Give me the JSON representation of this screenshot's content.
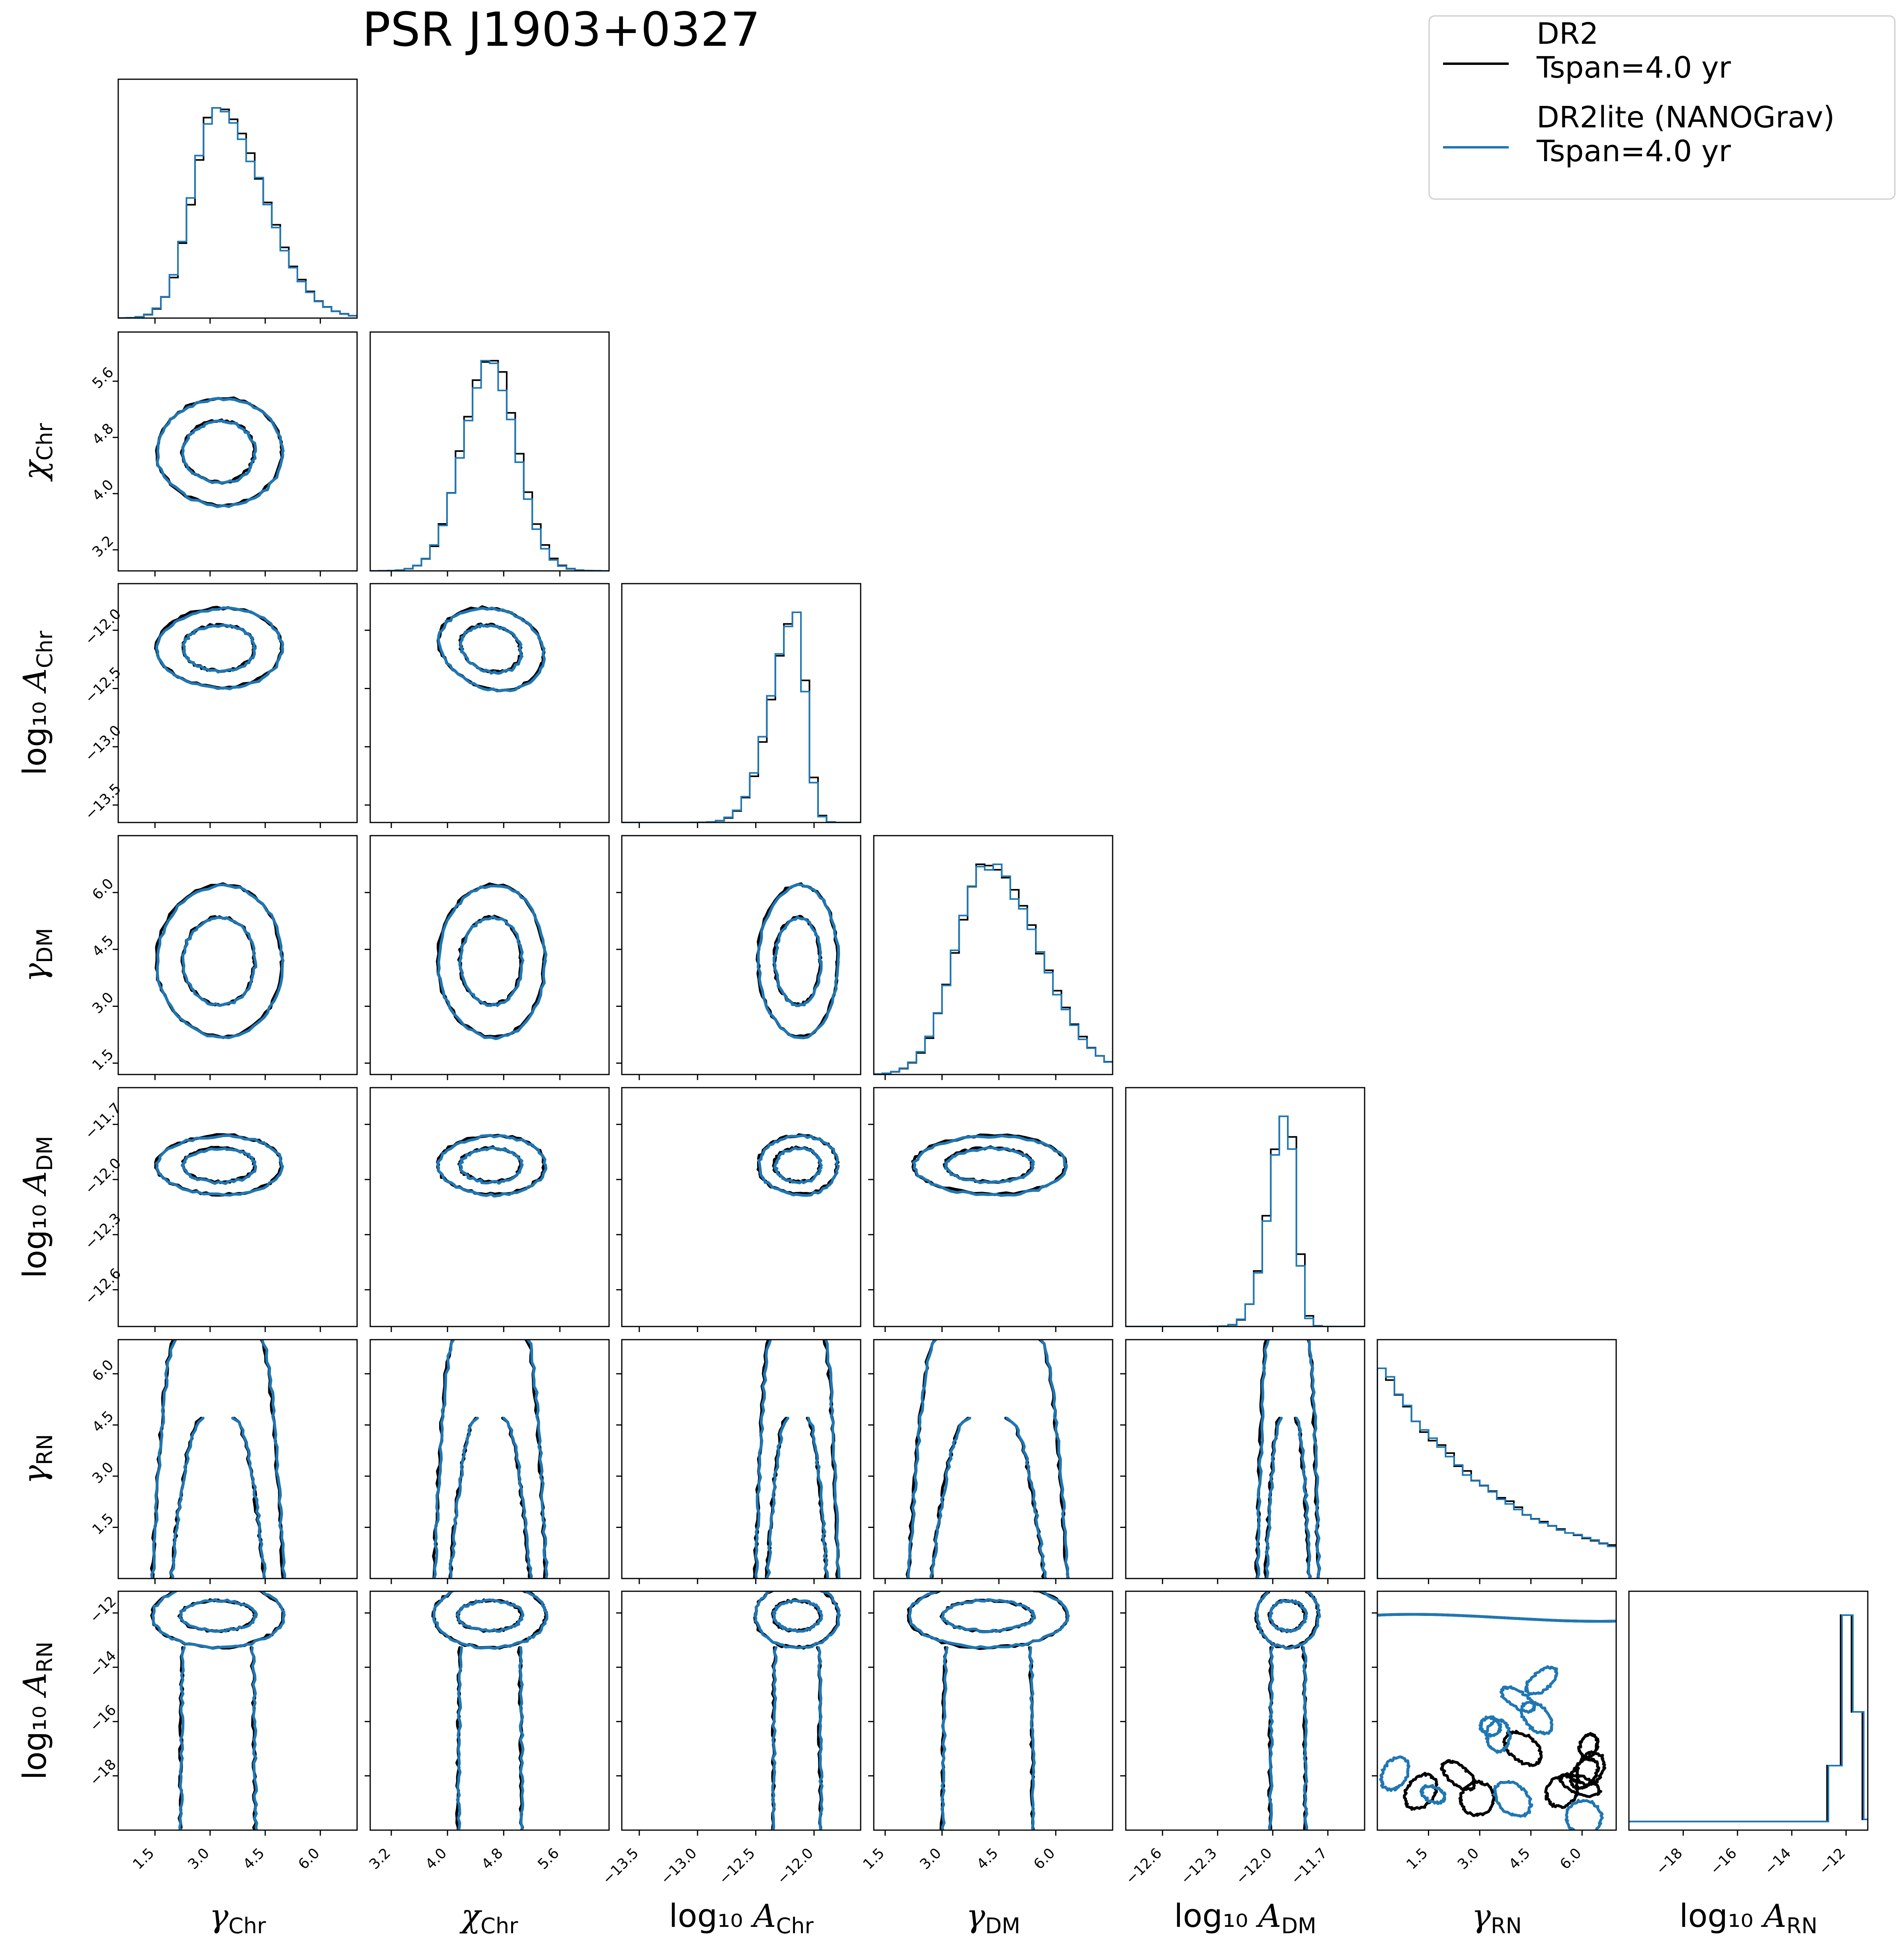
{
  "chart_data": {
    "type": "corner",
    "title": "PSR J1903+0327",
    "colors": {
      "DR2": "#000000",
      "DR2lite": "#1f77b4"
    },
    "legend": {
      "placement": "top-right",
      "entries": [
        {
          "key": "DR2",
          "line1": "DR2",
          "line2": "Tspan=4.0 yr"
        },
        {
          "key": "DR2lite",
          "line1": "DR2lite (NANOGrav)",
          "line2": "Tspan=4.0 yr"
        }
      ]
    },
    "params": [
      {
        "sym": "γ",
        "sub": "Chr",
        "pre": "",
        "range": [
          0.5,
          7.0
        ],
        "ticks": [
          "1.5",
          "3.0",
          "4.5",
          "6.0"
        ],
        "tick_values": [
          1.5,
          3.0,
          4.5,
          6.0
        ]
      },
      {
        "sym": "χ",
        "sub": "Chr",
        "pre": "",
        "range": [
          2.9,
          6.3
        ],
        "ticks": [
          "3.2",
          "4.0",
          "4.8",
          "5.6"
        ],
        "tick_values": [
          3.2,
          4.0,
          4.8,
          5.6
        ]
      },
      {
        "sym": "A",
        "sub": "Chr",
        "pre": "log₁₀",
        "range": [
          -13.65,
          -11.6
        ],
        "ticks": [
          "−13.5",
          "−13.0",
          "−12.5",
          "−12.0"
        ],
        "tick_values": [
          -13.5,
          -13.0,
          -12.5,
          -12.0
        ]
      },
      {
        "sym": "γ",
        "sub": "DM",
        "pre": "",
        "range": [
          1.2,
          7.5
        ],
        "ticks": [
          "1.5",
          "3.0",
          "4.5",
          "6.0"
        ],
        "tick_values": [
          1.5,
          3.0,
          4.5,
          6.0
        ]
      },
      {
        "sym": "A",
        "sub": "DM",
        "pre": "log₁₀",
        "range": [
          -12.8,
          -11.5
        ],
        "ticks": [
          "−12.6",
          "−12.3",
          "−12.0",
          "−11.7"
        ],
        "tick_values": [
          -12.6,
          -12.3,
          -12.0,
          -11.7
        ]
      },
      {
        "sym": "γ",
        "sub": "RN",
        "pre": "",
        "range": [
          0.0,
          7.0
        ],
        "ticks": [
          "1.5",
          "3.0",
          "4.5",
          "6.0"
        ],
        "tick_values": [
          1.5,
          3.0,
          4.5,
          6.0
        ]
      },
      {
        "sym": "A",
        "sub": "RN",
        "pre": "log₁₀",
        "range": [
          -20.0,
          -11.2
        ],
        "ticks": [
          "−18",
          "−16",
          "−14",
          "−12"
        ],
        "tick_values": [
          -18,
          -16,
          -14,
          -12
        ]
      }
    ],
    "marginals": [
      {
        "param": "γ_Chr",
        "mode": 3.2,
        "sigma": 0.85,
        "skew": 0.45
      },
      {
        "param": "χ_Chr",
        "mode": 4.6,
        "sigma": 0.38,
        "skew": 0.0
      },
      {
        "param": "log10_A_Chr",
        "mode": -12.15,
        "sigma": 0.17,
        "skew": -0.5
      },
      {
        "param": "γ_DM",
        "mode": 4.2,
        "sigma": 1.0,
        "skew": 0.35
      },
      {
        "param": "log10_A_DM",
        "mode": -11.92,
        "sigma": 0.08,
        "skew": -0.4
      },
      {
        "param": "γ_RN",
        "shape": "decay",
        "scale": 3.6
      },
      {
        "param": "log10_A_RN",
        "shape": "steps",
        "edges": [
          -20.0,
          -13.2,
          -12.7,
          -12.2,
          -11.8,
          -11.4,
          -11.2
        ],
        "heights": [
          0.04,
          0.04,
          0.3,
          1.0,
          0.55,
          0.05
        ]
      }
    ]
  }
}
